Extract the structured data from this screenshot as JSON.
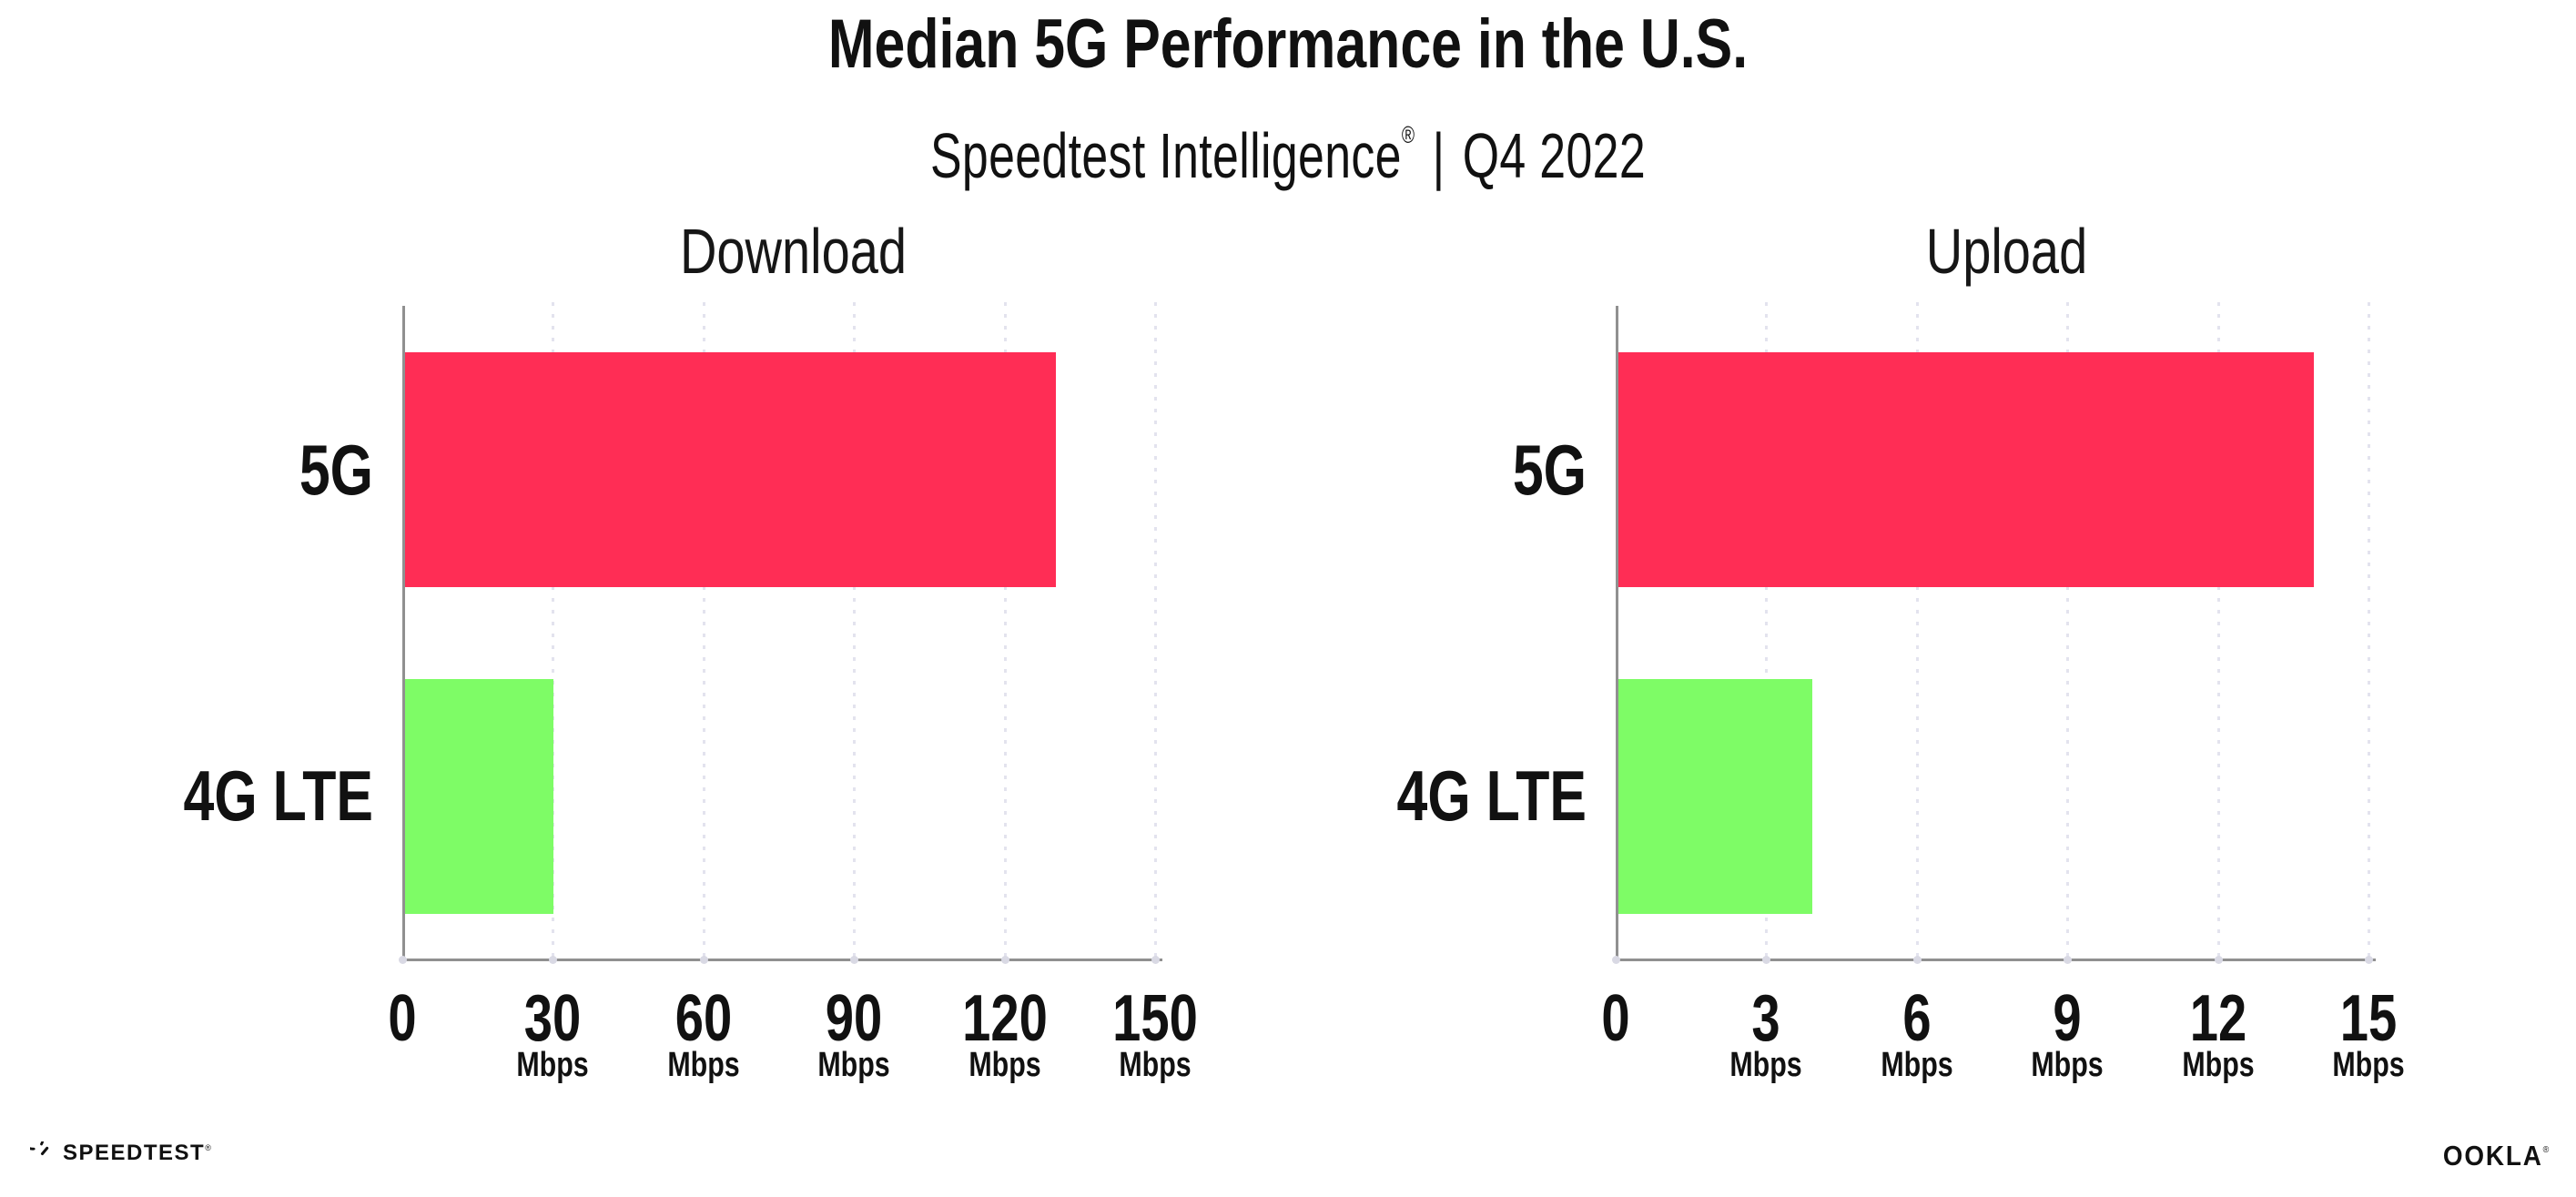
{
  "page": {
    "background": "#FFFFFF"
  },
  "header": {
    "title": "Median 5G Performance in the U.S.",
    "subtitle": {
      "brand": "Speedtest Intelligence",
      "registered_mark": "®",
      "divider": "|",
      "period": "Q4 2022"
    }
  },
  "chart_data": [
    {
      "type": "bar",
      "orientation": "horizontal",
      "title": "Download",
      "categories": [
        "5G",
        "4G LTE"
      ],
      "values": [
        130,
        30
      ],
      "unit": "Mbps",
      "xlim": [
        0,
        150
      ],
      "xticks": [
        0,
        30,
        60,
        90,
        120,
        150
      ],
      "grid": "vertical-dotted",
      "legend": "none",
      "series_colors": [
        "#FF2D55",
        "#7EFC66"
      ]
    },
    {
      "type": "bar",
      "orientation": "horizontal",
      "title": "Upload",
      "categories": [
        "5G",
        "4G LTE"
      ],
      "values": [
        13.9,
        3.9
      ],
      "unit": "Mbps",
      "xlim": [
        0,
        15
      ],
      "xticks": [
        0,
        3,
        6,
        9,
        12,
        15
      ],
      "grid": "vertical-dotted",
      "legend": "none",
      "series_colors": [
        "#FF2D55",
        "#7EFC66"
      ]
    }
  ],
  "footer": {
    "speedtest_logo_text": "SPEEDTEST",
    "speedtest_registered_mark": "®",
    "ookla_logo_text": "OOKLA",
    "ookla_registered_mark": "®"
  },
  "colors": {
    "bar_5g": "#FF2D55",
    "bar_4g_lte": "#7EFC66",
    "axis_line": "#909090",
    "gridline_dots": "#E3E3EE",
    "tick_dots": "#D9D9E4",
    "text": "#111111"
  }
}
